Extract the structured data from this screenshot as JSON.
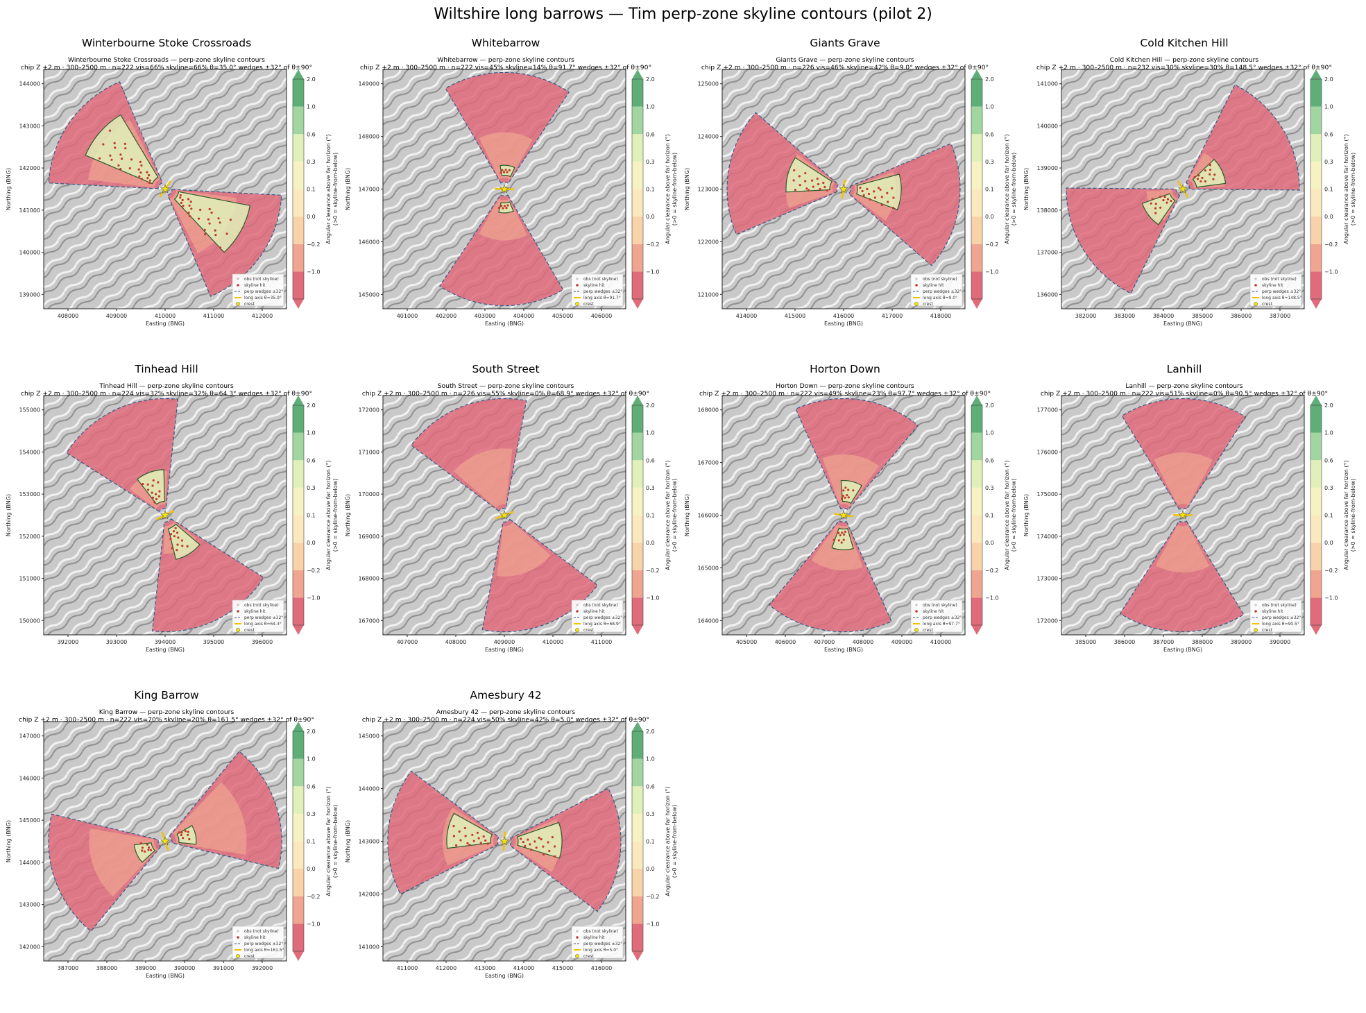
{
  "suptitle": "Wiltshire long barrows — Tim perp-zone skyline contours (pilot 2)",
  "colors": {
    "bands": [
      "#e06b7a",
      "#f0a590",
      "#f8d2a9",
      "#fbe9bd",
      "#f7f2c2",
      "#e0f0b8",
      "#a2d6a0",
      "#5fae78"
    ],
    "wedge_line": "#2e5c8a",
    "long_axis": "#f2c200",
    "skyline_hit": "#c0392b",
    "obs_not_skyline": "#cccccc"
  },
  "colorbar": {
    "ticks": [
      "2.0",
      "1.0",
      "0.6",
      "0.3",
      "0.1",
      "0.0",
      "−0.2",
      "−1.0"
    ],
    "label_line1": "Angular clearance above far horizon (°)",
    "label_line2": "(>0 = skyline-from-below)"
  },
  "legend": [
    "obs (not skyline)",
    "skyline hit",
    "perp wedges ±32°",
    "long axis θ",
    "crest"
  ],
  "axis_labels": {
    "x": "Easting (BNG)",
    "y": "Northing (BNG)"
  },
  "chart_data": [
    {
      "type": "heatmap",
      "title": "Winterbourne Stoke Crossroads",
      "subtitle": "Winterbourne Stoke Crossroads — perp-zone skyline contours",
      "params": "chip Z +2 m · 300–2500 m · n=222  vis=66%  skyline=66%  θ=35.0°  wedges ±32° of θ±90°",
      "theta_deg": 35.0,
      "long_axis_legend": "long axis θ=35.0°",
      "x_ticks": [
        "408000",
        "409000",
        "410000",
        "411000",
        "412000"
      ],
      "y_ticks": [
        "144000",
        "143000",
        "142000",
        "141000",
        "140000",
        "139000"
      ],
      "visible_pct": 66,
      "skyline_pct": 66
    },
    {
      "type": "heatmap",
      "title": "Whitebarrow",
      "subtitle": "Whitebarrow — perp-zone skyline contours",
      "params": "chip Z +2 m · 300–2500 m · n=222  vis=45%  skyline=14%  θ=91.7°  wedges ±32° of θ±90°",
      "theta_deg": 91.7,
      "long_axis_legend": "long axis θ=91.7°",
      "x_ticks": [
        "401000",
        "402000",
        "403000",
        "404000",
        "405000",
        "406000"
      ],
      "y_ticks": [
        "149000",
        "148000",
        "147000",
        "146000",
        "145000"
      ],
      "visible_pct": 45,
      "skyline_pct": 14
    },
    {
      "type": "heatmap",
      "title": "Giants Grave",
      "subtitle": "Giants Grave — perp-zone skyline contours",
      "params": "chip Z +2 m · 300–2500 m · n=226  vis=46%  skyline=42%  θ=9.0°  wedges ±32° of θ±90°",
      "theta_deg": 9.0,
      "long_axis_legend": "long axis θ=9.0°",
      "x_ticks": [
        "414000",
        "415000",
        "416000",
        "417000",
        "418000"
      ],
      "y_ticks": [
        "125000",
        "124000",
        "123000",
        "122000",
        "121000"
      ],
      "visible_pct": 46,
      "skyline_pct": 42
    },
    {
      "type": "heatmap",
      "title": "Cold Kitchen Hill",
      "subtitle": "Cold Kitchen Hill — perp-zone skyline contours",
      "params": "chip Z +2 m · 300–2500 m · n=232  vis=30%  skyline=30%  θ=148.5°  wedges ±32° of θ±90°",
      "theta_deg": 148.5,
      "long_axis_legend": "long axis θ=148.5°",
      "x_ticks": [
        "382000",
        "383000",
        "384000",
        "385000",
        "386000",
        "387000"
      ],
      "y_ticks": [
        "141000",
        "140000",
        "139000",
        "138000",
        "137000",
        "136000"
      ],
      "visible_pct": 30,
      "skyline_pct": 30
    },
    {
      "type": "heatmap",
      "title": "Tinhead Hill",
      "subtitle": "Tinhead Hill — perp-zone skyline contours",
      "params": "chip Z +2 m · 300–2500 m · n=224  vis=32%  skyline=32%  θ=64.3°  wedges ±32° of θ±90°",
      "theta_deg": 64.3,
      "long_axis_legend": "long axis θ=64.3°",
      "x_ticks": [
        "392000",
        "393000",
        "394000",
        "395000",
        "396000"
      ],
      "y_ticks": [
        "155000",
        "154000",
        "153000",
        "152000",
        "151000",
        "150000"
      ],
      "visible_pct": 32,
      "skyline_pct": 32
    },
    {
      "type": "heatmap",
      "title": "South Street",
      "subtitle": "South Street — perp-zone skyline contours",
      "params": "chip Z +2 m · 300–2500 m · n=226  vis=55%  skyline=0%  θ=68.9°  wedges ±32° of θ±90°",
      "theta_deg": 68.9,
      "long_axis_legend": "long axis θ=68.9°",
      "x_ticks": [
        "407000",
        "408000",
        "409000",
        "410000",
        "411000"
      ],
      "y_ticks": [
        "172000",
        "171000",
        "170000",
        "169000",
        "168000",
        "167000"
      ],
      "visible_pct": 55,
      "skyline_pct": 0
    },
    {
      "type": "heatmap",
      "title": "Horton Down",
      "subtitle": "Horton Down — perp-zone skyline contours",
      "params": "chip Z +2 m · 300–2500 m · n=222  vis=49%  skyline=23%  θ=97.7°  wedges ±32° of θ±90°",
      "theta_deg": 97.7,
      "long_axis_legend": "long axis θ=97.7°",
      "x_ticks": [
        "405000",
        "406000",
        "407000",
        "408000",
        "409000",
        "410000"
      ],
      "y_ticks": [
        "168000",
        "167000",
        "166000",
        "165000",
        "164000"
      ],
      "visible_pct": 49,
      "skyline_pct": 23
    },
    {
      "type": "heatmap",
      "title": "Lanhill",
      "subtitle": "Lanhill — perp-zone skyline contours",
      "params": "chip Z +2 m · 300–2500 m · n=222  vis=51%  skyline=0%  θ=90.5°  wedges ±32° of θ±90°",
      "theta_deg": 90.5,
      "long_axis_legend": "long axis θ=90.5°",
      "x_ticks": [
        "385000",
        "386000",
        "387000",
        "388000",
        "389000",
        "390000"
      ],
      "y_ticks": [
        "177000",
        "176000",
        "175000",
        "174000",
        "173000",
        "172000"
      ],
      "visible_pct": 51,
      "skyline_pct": 0
    },
    {
      "type": "heatmap",
      "title": "King Barrow",
      "subtitle": "King Barrow — perp-zone skyline contours",
      "params": "chip Z +2 m · 300–2500 m · n=222  vis=70%  skyline=20%  θ=161.5°  wedges ±32° of θ±90°",
      "theta_deg": 161.5,
      "long_axis_legend": "long axis θ=161.5°",
      "x_ticks": [
        "387000",
        "388000",
        "389000",
        "390000",
        "391000",
        "392000"
      ],
      "y_ticks": [
        "147000",
        "146000",
        "145000",
        "144000",
        "143000",
        "142000"
      ],
      "visible_pct": 70,
      "skyline_pct": 20
    },
    {
      "type": "heatmap",
      "title": "Amesbury 42",
      "subtitle": "Amesbury 42 — perp-zone skyline contours",
      "params": "chip Z +2 m · 300–2500 m · n=224  vis=50%  skyline=42%  θ=5.0°  wedges ±32° of θ±90°",
      "theta_deg": 5.0,
      "long_axis_legend": "long axis θ=5.0°",
      "x_ticks": [
        "411000",
        "412000",
        "413000",
        "414000",
        "415000",
        "416000"
      ],
      "y_ticks": [
        "145000",
        "144000",
        "143000",
        "142000",
        "141000"
      ],
      "visible_pct": 50,
      "skyline_pct": 42
    }
  ]
}
